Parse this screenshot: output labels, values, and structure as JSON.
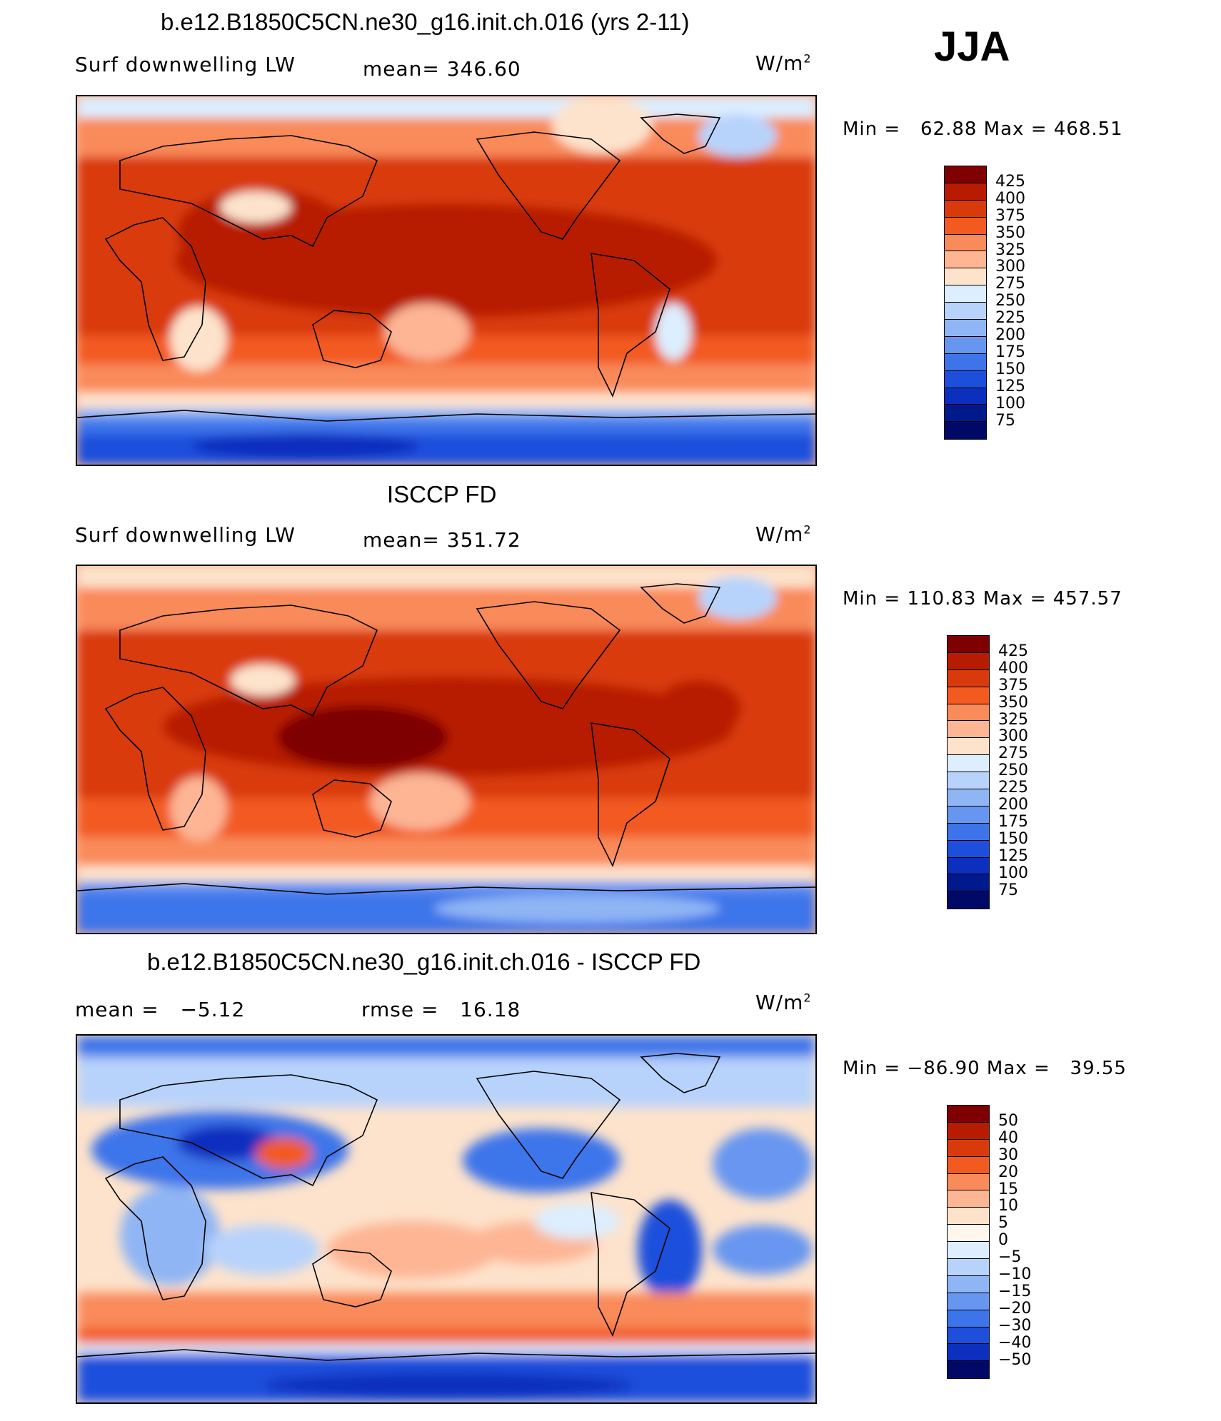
{
  "season": "JJA",
  "panels": [
    {
      "title": "b.e12.B1850C5CN.ne30_g16.init.ch.016 (yrs 2-11)",
      "left_label": "Surf downwelling LW",
      "center_label": "mean=  346.60",
      "units": "W/m",
      "units_exp": "2",
      "minmax": "Min =   62.88 Max = 468.51",
      "colorbar": {
        "colors": [
          "#7f0000",
          "#b71c00",
          "#d93a0b",
          "#f25a20",
          "#f98a5a",
          "#fdb594",
          "#fde3cc",
          "#dceeff",
          "#b7d3fb",
          "#8fb5f4",
          "#6796f0",
          "#3e74ea",
          "#1e4fdc",
          "#0c2fbe",
          "#001a8e",
          "#000a66"
        ],
        "labels": [
          "425",
          "400",
          "375",
          "350",
          "325",
          "300",
          "275",
          "250",
          "225",
          "200",
          "175",
          "150",
          "125",
          "100",
          "75"
        ]
      }
    },
    {
      "title": "ISCCP FD",
      "left_label": "Surf downwelling LW",
      "center_label": "mean=  351.72",
      "units": "W/m",
      "units_exp": "2",
      "minmax": "Min = 110.83 Max = 457.57",
      "colorbar": {
        "colors": [
          "#7f0000",
          "#b71c00",
          "#d93a0b",
          "#f25a20",
          "#f98a5a",
          "#fdb594",
          "#fde3cc",
          "#dceeff",
          "#b7d3fb",
          "#8fb5f4",
          "#6796f0",
          "#3e74ea",
          "#1e4fdc",
          "#0c2fbe",
          "#001a8e",
          "#000a66"
        ],
        "labels": [
          "425",
          "400",
          "375",
          "350",
          "325",
          "300",
          "275",
          "250",
          "225",
          "200",
          "175",
          "150",
          "125",
          "100",
          "75"
        ]
      }
    },
    {
      "title": "b.e12.B1850C5CN.ne30_g16.init.ch.016 - ISCCP FD",
      "left_label": "mean =   −5.12",
      "center_label": "rmse =   16.18",
      "units": "W/m",
      "units_exp": "2",
      "minmax": "Min = −86.90 Max =   39.55",
      "colorbar": {
        "colors": [
          "#7f0000",
          "#b71c00",
          "#d93a0b",
          "#f25a20",
          "#f98a5a",
          "#fdb594",
          "#fde3cc",
          "#fff6ee",
          "#dceeff",
          "#b7d3fb",
          "#8fb5f4",
          "#6796f0",
          "#3e74ea",
          "#1e4fdc",
          "#0c2fbe",
          "#000a66"
        ],
        "labels": [
          "50",
          "40",
          "30",
          "20",
          "15",
          "10",
          "5",
          "0",
          "−5",
          "−10",
          "−15",
          "−20",
          "−30",
          "−40",
          "−50"
        ]
      }
    }
  ]
}
